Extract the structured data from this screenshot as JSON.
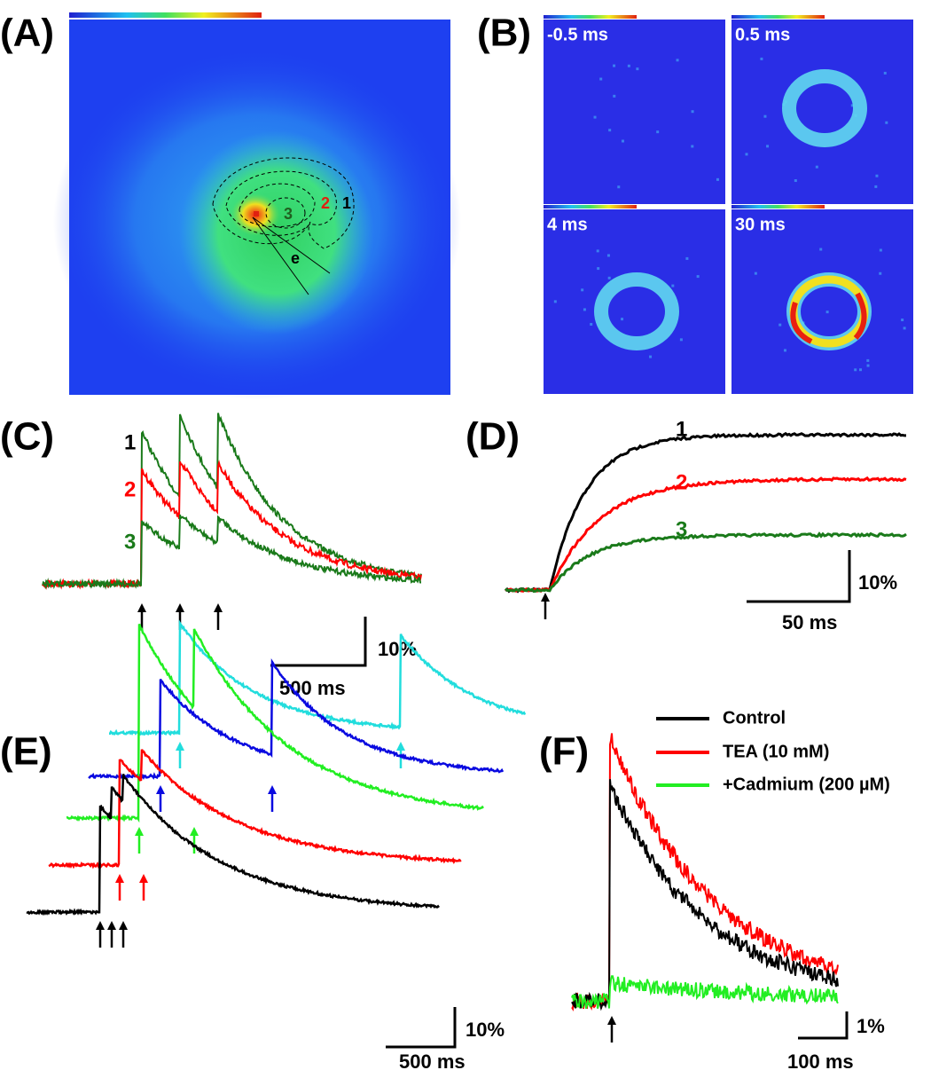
{
  "panels": {
    "A": {
      "label": "(A)",
      "region_labels": [
        "1",
        "2",
        "3"
      ],
      "line_label": "e"
    },
    "B": {
      "label": "(B)",
      "frames": [
        "-0.5 ms",
        "0.5 ms",
        "4 ms",
        "30 ms"
      ]
    },
    "C": {
      "label": "(C)",
      "trace_labels": [
        "1",
        "2",
        "3"
      ],
      "scale_y": "10%",
      "scale_x": "500 ms"
    },
    "D": {
      "label": "(D)",
      "trace_labels": [
        "1",
        "2",
        "3"
      ],
      "scale_y": "10%",
      "scale_x": "50 ms"
    },
    "E": {
      "label": "(E)",
      "scale_y": "10%",
      "scale_x": "500 ms"
    },
    "F": {
      "label": "(F)",
      "legend": [
        "Control",
        "TEA (10 mM)",
        "+Cadmium (200 µM)"
      ],
      "scale_y": "1%",
      "scale_x": "100 ms"
    }
  }
}
